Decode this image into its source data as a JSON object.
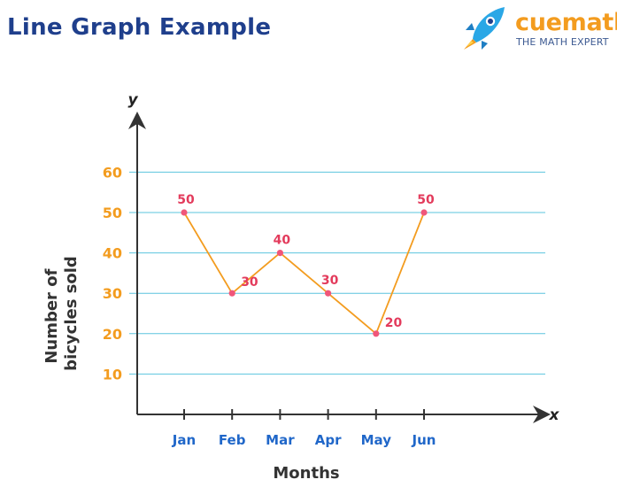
{
  "header": {
    "title": "Line Graph Example"
  },
  "brand": {
    "name": "cuemath",
    "tagline": "THE MATH EXPERT",
    "logo_icon": "rocket-icon",
    "colors": {
      "orange": "#f39c1f",
      "blue": "#2aa7e6",
      "navy": "#1f3f8c"
    }
  },
  "chart_data": {
    "type": "line",
    "title": "Line Graph Example",
    "xlabel": "Months",
    "ylabel": "Number of bicycles sold",
    "x_axis_letter": "x",
    "y_axis_letter": "y",
    "categories": [
      "Jan",
      "Feb",
      "Mar",
      "Apr",
      "May",
      "Jun"
    ],
    "series": [
      {
        "values": [
          50,
          30,
          40,
          30,
          20,
          50
        ],
        "color": "#f39c1f",
        "point_color": "#f0567a",
        "label_color": "#e33b5c"
      }
    ],
    "yticks": [
      10,
      20,
      30,
      40,
      50,
      60
    ],
    "ylim": [
      0,
      60
    ],
    "grid": true,
    "grid_axis": "y",
    "grid_color": "#5bc4de",
    "legend": "none",
    "colors": {
      "ytick": "#f39c1f",
      "xtick": "#2067c9",
      "axis": "#333333"
    }
  }
}
